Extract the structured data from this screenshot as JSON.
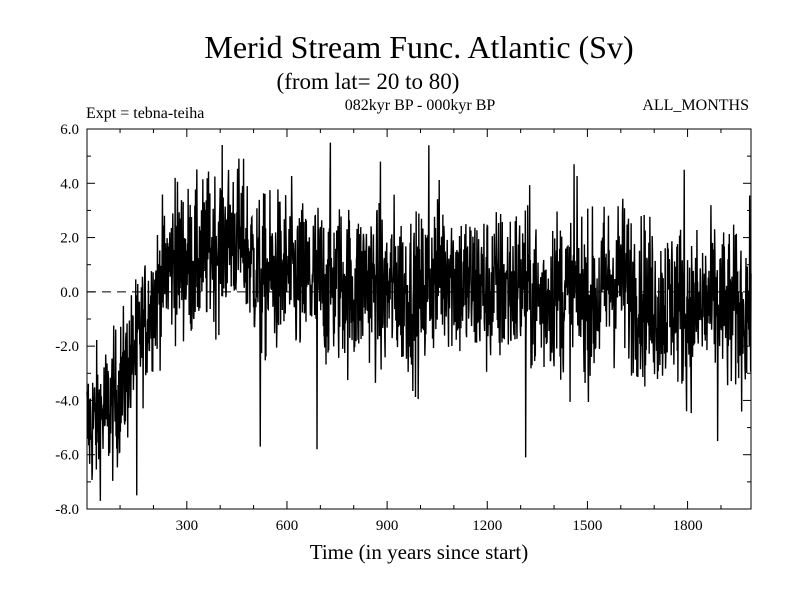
{
  "chart_data": {
    "type": "line",
    "title": "Merid Stream Func. Atlantic (Sv)",
    "subtitle": "(from lat= 20 to 80)",
    "expt_label": "Expt = tebna-teiha",
    "period_label": "082kyr BP - 000kyr BP",
    "months_label": "ALL_MONTHS",
    "xlabel": "Time (in years since start)",
    "ylabel": "",
    "xlim": [
      1,
      1990
    ],
    "ylim": [
      -8,
      6
    ],
    "xticks": [
      300,
      600,
      900,
      1200,
      1500,
      1800
    ],
    "xtick_labels": [
      "300",
      "600",
      "900",
      "1200",
      "1500",
      "1800"
    ],
    "yticks": [
      -8,
      -6,
      -4,
      -2,
      0,
      2,
      4,
      6
    ],
    "ytick_labels": [
      "-8.0",
      "-6.0",
      "-4.0",
      "-2.0",
      "0.0",
      "2.0",
      "4.0",
      "6.0"
    ],
    "zero_line": {
      "y": 0,
      "style": "dashed"
    },
    "line_color": "#000000",
    "series": [
      {
        "name": "tebna-teiha",
        "x": [
          1,
          40,
          80,
          120,
          160,
          200,
          240,
          280,
          320,
          360,
          400,
          440,
          480,
          520,
          560,
          600,
          640,
          680,
          720,
          760,
          800,
          840,
          880,
          920,
          960,
          1000,
          1040,
          1080,
          1120,
          1160,
          1200,
          1240,
          1280,
          1320,
          1360,
          1400,
          1440,
          1480,
          1520,
          1560,
          1600,
          1640,
          1680,
          1720,
          1760,
          1800,
          1840,
          1880,
          1920,
          1960,
          1990
        ],
        "values": [
          -5.0,
          -4.6,
          -4.2,
          -3.0,
          -1.6,
          -0.3,
          0.9,
          1.2,
          1.0,
          1.5,
          1.8,
          2.2,
          1.6,
          0.4,
          0.6,
          0.8,
          0.3,
          0.5,
          0.2,
          0.4,
          0.0,
          0.6,
          -0.2,
          0.3,
          0.0,
          -0.3,
          0.7,
          1.0,
          0.3,
          0.2,
          0.0,
          0.1,
          0.3,
          0.2,
          -0.4,
          0.2,
          -0.2,
          0.0,
          -0.5,
          0.3,
          0.6,
          0.0,
          -0.3,
          -0.6,
          -0.2,
          -0.9,
          -0.6,
          -0.4,
          -0.8,
          -0.7,
          -0.6
        ],
        "amplitude": [
          1.3,
          1.3,
          1.3,
          1.3,
          1.2,
          1.2,
          1.3,
          1.4,
          1.4,
          1.4,
          1.4,
          1.4,
          1.4,
          1.5,
          1.5,
          1.5,
          1.5,
          1.5,
          1.5,
          1.5,
          1.5,
          1.5,
          1.5,
          1.5,
          1.5,
          1.5,
          1.5,
          1.5,
          1.5,
          1.5,
          1.5,
          1.5,
          1.5,
          1.5,
          1.5,
          1.5,
          1.5,
          1.5,
          1.5,
          1.5,
          1.5,
          1.5,
          1.5,
          1.5,
          1.5,
          1.5,
          1.5,
          1.5,
          1.5,
          1.5,
          1.5
        ],
        "peaks": [
          {
            "x": 150,
            "y": -7.5
          },
          {
            "x": 265,
            "y": 4.2
          },
          {
            "x": 520,
            "y": -5.7
          },
          {
            "x": 690,
            "y": -5.8
          },
          {
            "x": 730,
            "y": 5.5
          },
          {
            "x": 880,
            "y": 4.8
          },
          {
            "x": 1025,
            "y": 5.4
          },
          {
            "x": 1315,
            "y": -6.1
          },
          {
            "x": 1460,
            "y": 4.7
          },
          {
            "x": 1890,
            "y": -5.5
          },
          {
            "x": 1790,
            "y": 4.5
          }
        ]
      }
    ]
  }
}
